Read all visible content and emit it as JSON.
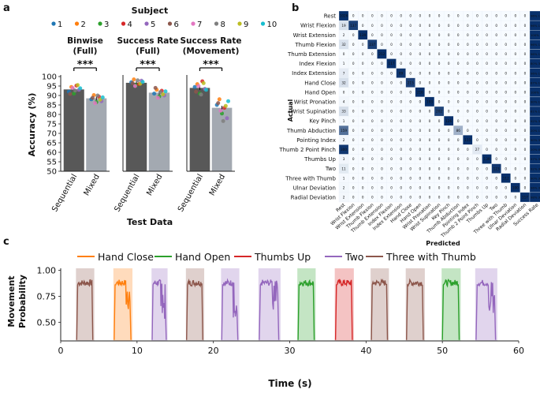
{
  "colors": {
    "sequential_bar": "#585858",
    "mixed_bar": "#a3a9b1",
    "subjects": [
      "#1f77b4",
      "#ff7f0e",
      "#2ca02c",
      "#d62728",
      "#9467bd",
      "#8c564b",
      "#e377c2",
      "#7f7f7f",
      "#bcbd22",
      "#17becf"
    ],
    "cm_dark": "#08306b",
    "cm_light": "#f7fbff",
    "traces": {
      "Hand Close": "#ff7f0e",
      "Hand Open": "#2ca02c",
      "Thumbs Up": "#d62728",
      "Two": "#9467bd",
      "Three with Thumb": "#8c564b"
    }
  },
  "panel_a": {
    "label": "a",
    "legend_title": "Subject",
    "legend_labels": [
      "1",
      "2",
      "3",
      "4",
      "5",
      "6",
      "7",
      "8",
      "9",
      "10"
    ],
    "ylabel": "Accuracy (%)",
    "xlabel": "Test Data",
    "yticks": [
      "50",
      "55",
      "60",
      "65",
      "70",
      "75",
      "80",
      "85",
      "90",
      "95",
      "100"
    ],
    "categories": [
      "Sequential",
      "Mixed"
    ],
    "significance": "***",
    "subplots": [
      {
        "title_line1": "Binwise",
        "title_line2": "(Full)",
        "means": [
          93.2,
          88.5
        ],
        "seq_points": [
          92.0,
          94.5,
          91.0,
          95.2,
          93.0,
          90.8,
          94.0,
          92.6,
          95.5,
          93.8
        ],
        "mix_points": [
          88.0,
          90.2,
          86.5,
          89.4,
          87.0,
          88.8,
          86.0,
          90.0,
          87.8,
          89.0
        ]
      },
      {
        "title_line1": "Success Rate",
        "title_line2": "(Full)",
        "means": [
          96.7,
          91.5
        ],
        "seq_points": [
          97.0,
          98.5,
          95.5,
          96.0,
          97.8,
          96.5,
          95.0,
          98.0,
          96.2,
          97.2
        ],
        "mix_points": [
          91.0,
          93.0,
          89.5,
          92.5,
          90.0,
          94.0,
          88.8,
          91.8,
          90.6,
          92.2
        ]
      },
      {
        "title_line1": "Success Rate",
        "title_line2": "(Movement)",
        "means": [
          94.0,
          83.5
        ],
        "seq_points": [
          94.5,
          96.0,
          91.0,
          97.5,
          93.5,
          92.0,
          95.0,
          90.5,
          96.5,
          93.0
        ],
        "mix_points": [
          85.0,
          88.0,
          80.5,
          83.5,
          78.0,
          86.0,
          82.0,
          76.5,
          84.5,
          87.0
        ]
      }
    ]
  },
  "panel_b": {
    "label": "b",
    "xlabel": "Predicted",
    "ylabel": "Actual",
    "classes": [
      "Rest",
      "Wrist Flexion",
      "Wrist Extension",
      "Thumb Flexion",
      "Thumb Extension",
      "Index Flexion",
      "Index Extension",
      "Hand Close",
      "Hand Open",
      "Wrist Pronation",
      "Wrist Supination",
      "Key Pinch",
      "Thumb Abduction",
      "Pointing Index",
      "Thumb 2 Point Pinch",
      "Thumbs Up",
      "Two",
      "Three with Thumb",
      "Ulnar Deviation",
      "Radial Deviation"
    ],
    "success_header": "Success Rate",
    "diagonal": [
      1026,
      137,
      139,
      237,
      212,
      117,
      89,
      215,
      216,
      193,
      202,
      126,
      86,
      111,
      27,
      139,
      123,
      112,
      100,
      117
    ],
    "first_col": [
      1026,
      19,
      2,
      32,
      0,
      1,
      7,
      32,
      0,
      4,
      33,
      1,
      159,
      2,
      300,
      3,
      11,
      1,
      2,
      2
    ],
    "success": [
      "96%  1/10",
      "96%  10/10",
      "100% 3/3",
      "96%  10/10",
      "96%  10/10",
      "80%  3/3",
      "96%  10/10",
      "87%  10/10",
      "100% 10/10",
      "90%  10/10",
      "81%  10/10",
      "92%  3/3",
      "20%  1/10",
      "90%  3/3",
      "20%  0/3",
      "97%  3/3",
      "92%  3/3",
      "90%  3/3",
      "96%  3/3",
      "98%  3/3"
    ]
  },
  "panel_c": {
    "label": "c",
    "legend": [
      "Hand Close",
      "Hand Open",
      "Thumbs Up",
      "Two",
      "Three with Thumb"
    ],
    "ylabel_line1": "Movement",
    "ylabel_line2": "Probability",
    "xlabel": "Time (s)",
    "xticks": [
      "0",
      "10",
      "20",
      "30",
      "40",
      "50",
      "60"
    ],
    "yticks": [
      "0.50",
      "0.75",
      "1.00"
    ],
    "xlim": [
      0,
      60
    ],
    "ylim": [
      0.32,
      1.02
    ],
    "segments": [
      {
        "label": "Three with Thumb",
        "start": 2.0,
        "end": 4.4
      },
      {
        "label": "Hand Close",
        "start": 6.9,
        "end": 9.4
      },
      {
        "label": "Two",
        "start": 11.9,
        "end": 14.0
      },
      {
        "label": "Three with Thumb",
        "start": 16.4,
        "end": 18.8
      },
      {
        "label": "Two",
        "start": 21.0,
        "end": 23.4
      },
      {
        "label": "Two",
        "start": 25.9,
        "end": 28.8
      },
      {
        "label": "Hand Open",
        "start": 31.0,
        "end": 33.4
      },
      {
        "label": "Thumbs Up",
        "start": 35.9,
        "end": 38.4
      },
      {
        "label": "Three with Thumb",
        "start": 40.6,
        "end": 43.0
      },
      {
        "label": "Three with Thumb",
        "start": 45.2,
        "end": 47.7
      },
      {
        "label": "Hand Open",
        "start": 49.9,
        "end": 52.4
      },
      {
        "label": "Two",
        "start": 54.3,
        "end": 57.2
      }
    ]
  },
  "chart_data": [
    {
      "type": "bar",
      "title": "Binwise (Full)",
      "categories": [
        "Sequential",
        "Mixed"
      ],
      "values": [
        93.2,
        88.5
      ],
      "ylabel": "Accuracy (%)",
      "xlabel": "Test Data",
      "ylim": [
        50,
        100
      ]
    },
    {
      "type": "bar",
      "title": "Success Rate (Full)",
      "categories": [
        "Sequential",
        "Mixed"
      ],
      "values": [
        96.7,
        91.5
      ],
      "ylim": [
        50,
        100
      ]
    },
    {
      "type": "bar",
      "title": "Success Rate (Movement)",
      "categories": [
        "Sequential",
        "Mixed"
      ],
      "values": [
        94.0,
        83.5
      ],
      "ylim": [
        50,
        100
      ]
    },
    {
      "type": "heatmap",
      "title": "Confusion matrix",
      "xlabel": "Predicted",
      "ylabel": "Actual"
    },
    {
      "type": "line",
      "xlabel": "Time (s)",
      "ylabel": "Movement Probability",
      "xlim": [
        0,
        60
      ],
      "ylim": [
        0.32,
        1.02
      ]
    }
  ]
}
